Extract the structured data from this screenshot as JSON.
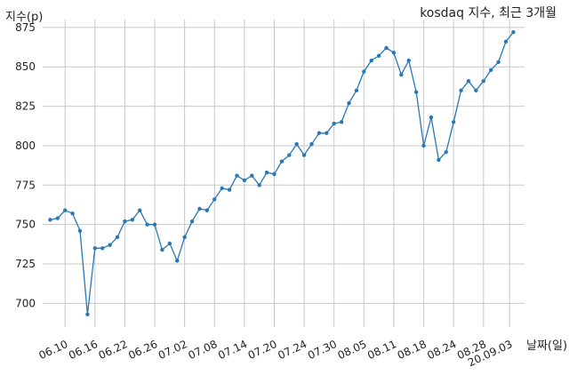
{
  "chart_data": {
    "type": "line",
    "title": "kosdaq 지수, 최근 3개월",
    "xlabel": "날짜(일)",
    "ylabel": "지수(p)",
    "ylim": [
      685,
      880
    ],
    "yticks": [
      700,
      725,
      750,
      775,
      800,
      825,
      850,
      875
    ],
    "grid": true,
    "legend": "none",
    "x_tick_labels": [
      "06.10",
      "06.16",
      "06.22",
      "06.26",
      "07.02",
      "07.08",
      "07.14",
      "07.20",
      "07.24",
      "07.30",
      "08.05",
      "08.11",
      "08.18",
      "08.24",
      "08.28",
      "20.09.03"
    ],
    "x_tick_positions": [
      2,
      6,
      10,
      14,
      18,
      22,
      26,
      30,
      34,
      38,
      42,
      46,
      50,
      54,
      58,
      61.5
    ],
    "series": [
      {
        "color": "#2878b5",
        "values": [
          753,
          754,
          759,
          757,
          746,
          693,
          735,
          735,
          737,
          742,
          752,
          753,
          759,
          750,
          750,
          734,
          738,
          727,
          742,
          752,
          760,
          759,
          766,
          773,
          772,
          781,
          778,
          781,
          775,
          783,
          782,
          790,
          794,
          801,
          794,
          801,
          808,
          808,
          814,
          815,
          827,
          835,
          847,
          854,
          857,
          862,
          859,
          845,
          854,
          834,
          800,
          818,
          791,
          796,
          815,
          835,
          841,
          835,
          841,
          848,
          853,
          866,
          872
        ]
      }
    ]
  }
}
